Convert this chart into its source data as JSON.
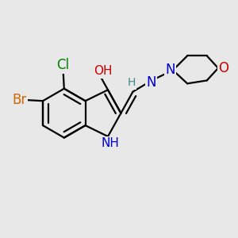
{
  "bg": "#e8e8e8",
  "bond_color": "#000000",
  "colors": {
    "Cl": "#008000",
    "Br": "#cc6600",
    "O": "#cc0000",
    "N": "#0000cc",
    "H": "#448888"
  },
  "lw": 1.6
}
